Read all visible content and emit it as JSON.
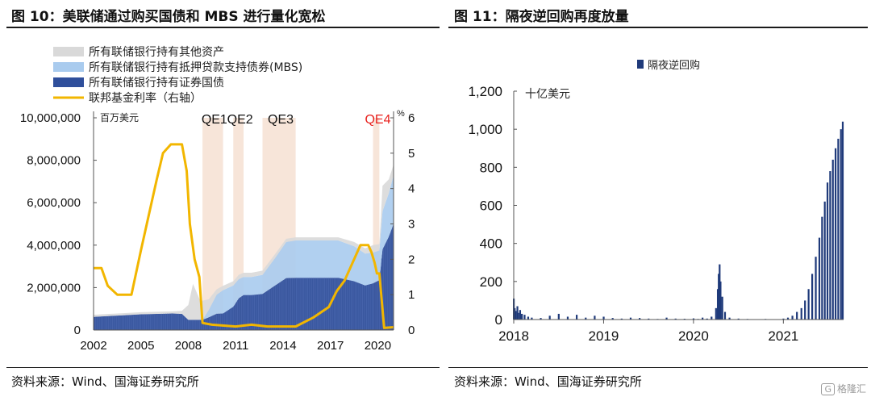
{
  "left_panel": {
    "title": "图 10：美联储通过购买国债和 MBS 进行量化宽松",
    "source": "资料来源：Wind、国海证券研究所"
  },
  "right_panel": {
    "title": "图 11：隔夜逆回购再度放量",
    "source": "资料来源：Wind、国海证券研究所"
  },
  "watermark": {
    "text": "格隆汇",
    "box": "G"
  },
  "chart_data": [
    {
      "type": "area",
      "y_unit_label": "百万美元",
      "y2_unit_label": "%",
      "ylim": [
        0,
        10000000
      ],
      "y2lim": [
        0,
        6
      ],
      "xlim": [
        2002,
        2021
      ],
      "x_ticks": [
        "2002",
        "2005",
        "2008",
        "2011",
        "2014",
        "2017",
        "2020"
      ],
      "y_ticks": [
        "0",
        "2,000,000",
        "4,000,000",
        "6,000,000",
        "8,000,000",
        "10,000,000"
      ],
      "y2_ticks": [
        "0",
        "1",
        "2",
        "3",
        "4",
        "5",
        "6"
      ],
      "legend_position": "top-left",
      "qe_periods": [
        {
          "label": "QE1",
          "start": 2008.9,
          "end": 2010.2,
          "color": "#111111"
        },
        {
          "label": "QE2",
          "start": 2010.85,
          "end": 2011.5,
          "color": "#111111"
        },
        {
          "label": "QE3",
          "start": 2012.7,
          "end": 2014.8,
          "color": "#111111"
        },
        {
          "label": "QE4",
          "start": 2019.7,
          "end": 2020.1,
          "color": "#e8211d"
        }
      ],
      "x": [
        2002,
        2003,
        2004,
        2005,
        2006,
        2007,
        2007.6,
        2008.0,
        2008.3,
        2008.7,
        2008.9,
        2009.3,
        2009.8,
        2010.2,
        2010.85,
        2011.2,
        2011.5,
        2012.0,
        2012.7,
        2013.5,
        2014.2,
        2014.8,
        2015.5,
        2016.5,
        2017.5,
        2018.5,
        2019.2,
        2019.7,
        2020.1,
        2020.3,
        2020.7,
        2021.0
      ],
      "series": [
        {
          "name": "所有联储银行持有证券国债",
          "color": "#2f4f9b",
          "values": [
            620000,
            660000,
            700000,
            740000,
            760000,
            780000,
            760000,
            480000,
            480000,
            480000,
            480000,
            600000,
            770000,
            780000,
            1100000,
            1500000,
            1650000,
            1650000,
            1700000,
            2100000,
            2450000,
            2460000,
            2460000,
            2460000,
            2460000,
            2300000,
            2100000,
            2200000,
            2350000,
            3800000,
            4400000,
            5000000
          ]
        },
        {
          "name": "所有联储银行持有抵押贷款支持债券(MBS)",
          "color": "#a9cbee",
          "values": [
            0,
            0,
            0,
            0,
            0,
            0,
            0,
            0,
            0,
            0,
            0,
            350000,
            900000,
            1100000,
            1000000,
            900000,
            850000,
            850000,
            900000,
            1300000,
            1700000,
            1760000,
            1760000,
            1760000,
            1760000,
            1650000,
            1500000,
            1450000,
            1400000,
            1800000,
            2050000,
            2300000
          ]
        },
        {
          "name": "所有联储银行持有其他资产",
          "color": "#d9d9d9",
          "values": [
            100000,
            100000,
            100000,
            100000,
            100000,
            100000,
            150000,
            700000,
            1700000,
            1000000,
            900000,
            500000,
            250000,
            200000,
            200000,
            200000,
            200000,
            200000,
            200000,
            180000,
            150000,
            150000,
            150000,
            150000,
            150000,
            200000,
            250000,
            350000,
            300000,
            1200000,
            650000,
            500000
          ]
        }
      ],
      "rate_series": {
        "name": "联邦基金利率（右轴）",
        "color": "#f2b600",
        "x": [
          2002,
          2002.5,
          2002.9,
          2003.5,
          2004.4,
          2005.0,
          2005.5,
          2006.0,
          2006.4,
          2006.9,
          2007.3,
          2007.6,
          2007.9,
          2008.1,
          2008.4,
          2008.7,
          2008.9,
          2009.5,
          2011.0,
          2012.0,
          2013.0,
          2014.0,
          2014.8,
          2015.9,
          2016.9,
          2017.4,
          2017.9,
          2018.4,
          2018.9,
          2019.4,
          2019.6,
          2019.8,
          2019.95,
          2020.1,
          2020.4,
          2021.0
        ],
        "values": [
          1.75,
          1.75,
          1.25,
          1.0,
          1.0,
          2.25,
          3.25,
          4.25,
          5.0,
          5.25,
          5.25,
          5.25,
          4.5,
          3.0,
          2.0,
          1.5,
          0.2,
          0.15,
          0.1,
          0.15,
          0.1,
          0.1,
          0.1,
          0.35,
          0.65,
          1.1,
          1.4,
          1.9,
          2.4,
          2.4,
          2.2,
          1.9,
          1.6,
          1.6,
          0.06,
          0.08
        ]
      }
    },
    {
      "type": "bar",
      "series_name": "隔夜逆回购",
      "y_unit_label": "十亿美元",
      "ylim": [
        0,
        1200
      ],
      "xlim": [
        2018.0,
        2021.67
      ],
      "x_ticks": [
        "2018",
        "2019",
        "2020",
        "2021"
      ],
      "y_ticks": [
        "0",
        "200",
        "400",
        "600",
        "800",
        "1,000",
        "1,200"
      ],
      "legend_position": "top-center",
      "bar_color": "#1f3a7a",
      "x": [
        2018.0,
        2018.01,
        2018.02,
        2018.04,
        2018.05,
        2018.07,
        2018.09,
        2018.12,
        2018.16,
        2018.2,
        2018.3,
        2018.4,
        2018.5,
        2018.6,
        2018.7,
        2018.8,
        2018.9,
        2019.0,
        2019.1,
        2019.2,
        2019.3,
        2019.4,
        2019.5,
        2019.6,
        2019.7,
        2019.8,
        2019.9,
        2020.0,
        2020.05,
        2020.1,
        2020.15,
        2020.2,
        2020.25,
        2020.27,
        2020.28,
        2020.29,
        2020.3,
        2020.32,
        2020.35,
        2020.4,
        2020.5,
        2020.6,
        2020.7,
        2020.8,
        2020.9,
        2021.0,
        2021.05,
        2021.1,
        2021.15,
        2021.2,
        2021.24,
        2021.28,
        2021.32,
        2021.36,
        2021.4,
        2021.43,
        2021.46,
        2021.49,
        2021.52,
        2021.55,
        2021.58,
        2021.61,
        2021.64,
        2021.66
      ],
      "values": [
        110,
        60,
        45,
        70,
        35,
        50,
        30,
        25,
        15,
        10,
        8,
        20,
        30,
        15,
        25,
        10,
        20,
        15,
        8,
        5,
        10,
        8,
        5,
        3,
        10,
        5,
        4,
        6,
        3,
        10,
        5,
        15,
        60,
        160,
        240,
        290,
        200,
        120,
        40,
        10,
        5,
        3,
        2,
        3,
        2,
        5,
        10,
        20,
        40,
        60,
        100,
        160,
        240,
        330,
        430,
        540,
        620,
        720,
        780,
        840,
        900,
        950,
        1000,
        1040
      ]
    }
  ]
}
